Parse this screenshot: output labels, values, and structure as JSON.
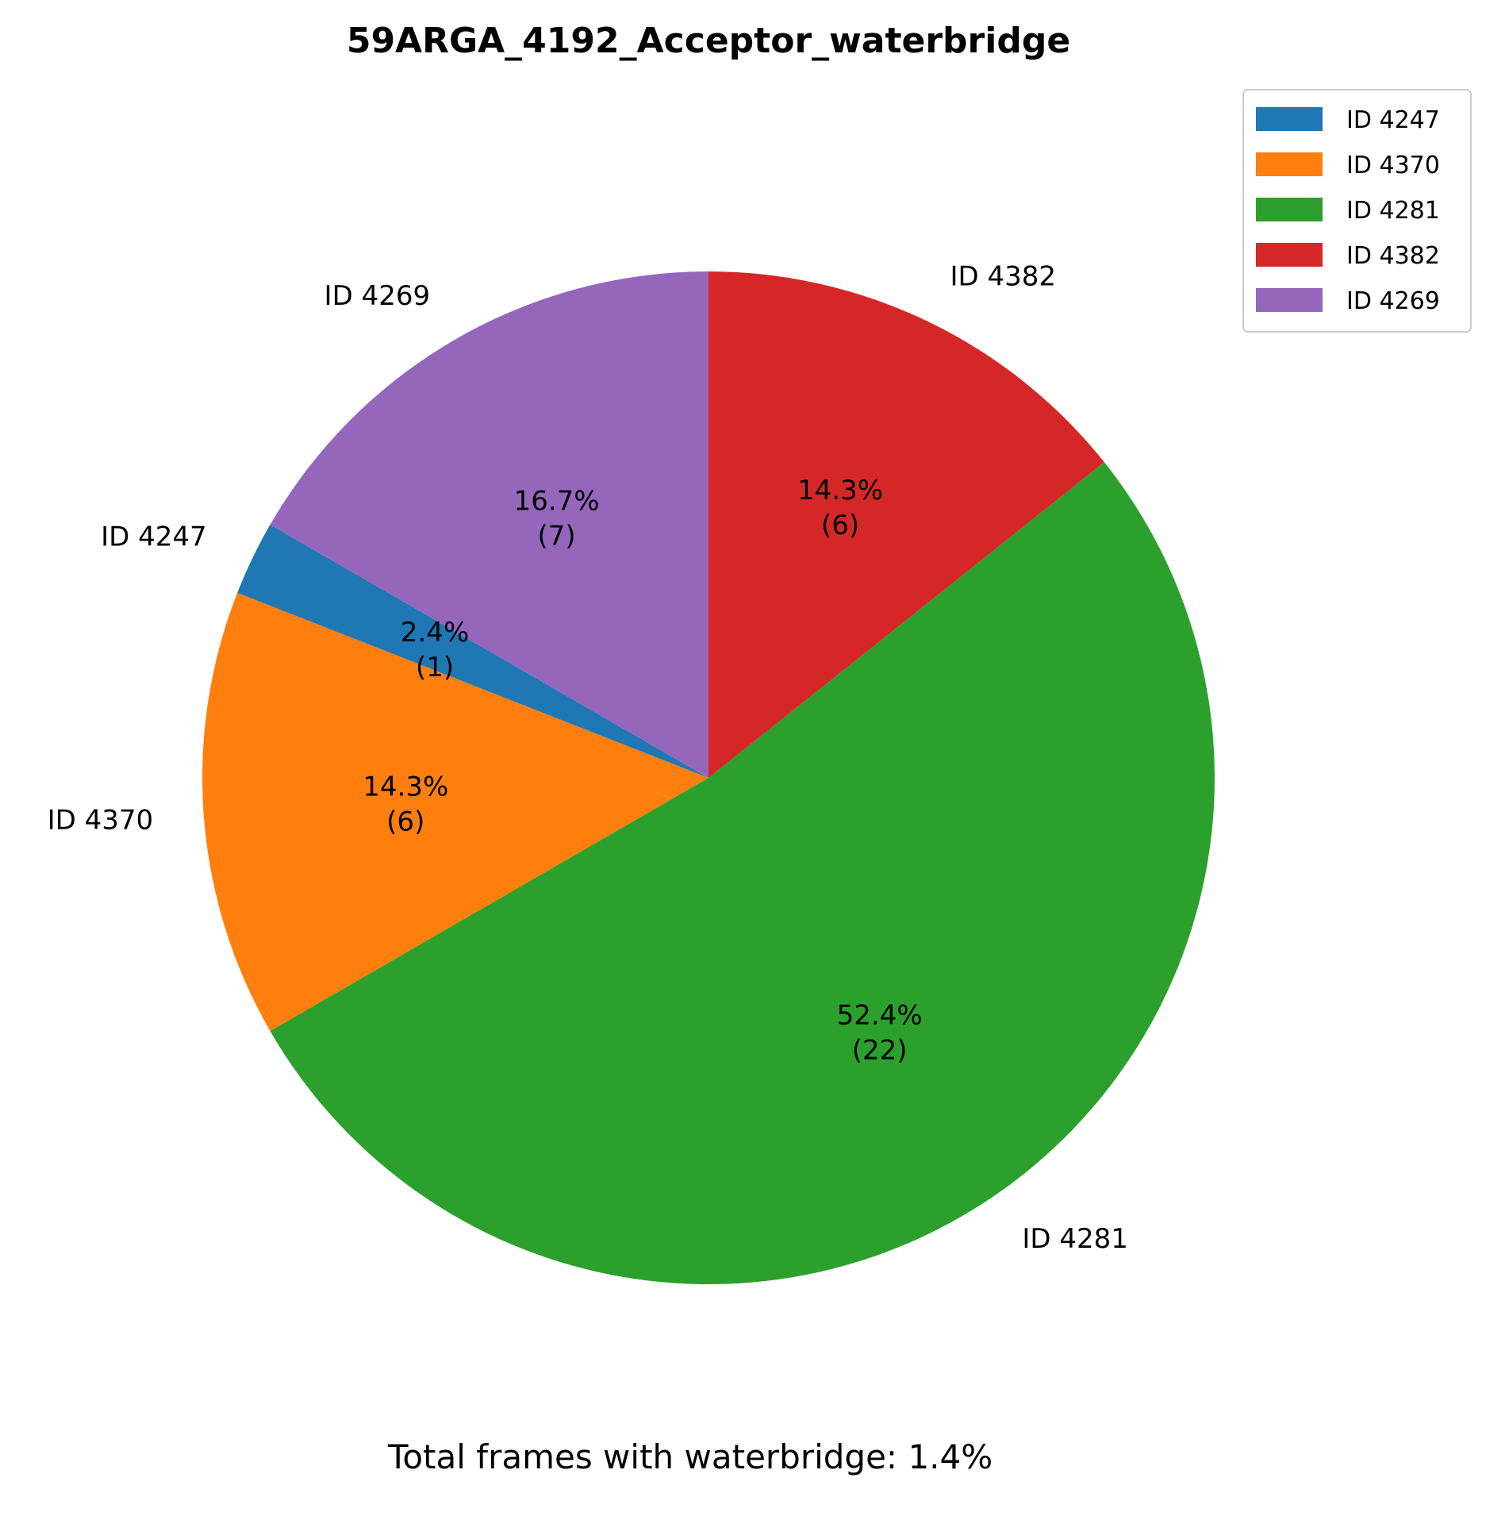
{
  "chart_data": {
    "type": "pie",
    "title": "59ARGA_4192_Acceptor_waterbridge",
    "footer": "Total frames with waterbridge: 1.4%",
    "legend_position": "top-right",
    "start_angle_deg": 150,
    "direction": "counterclockwise",
    "slices": [
      {
        "label": "ID 4247",
        "value": 1,
        "pct_label": "2.4%",
        "count_label": "(1)",
        "color": "#1f77b4"
      },
      {
        "label": "ID 4370",
        "value": 6,
        "pct_label": "14.3%",
        "count_label": "(6)",
        "color": "#ff7f0e"
      },
      {
        "label": "ID 4281",
        "value": 22,
        "pct_label": "52.4%",
        "count_label": "(22)",
        "color": "#2ca02c"
      },
      {
        "label": "ID 4382",
        "value": 6,
        "pct_label": "14.3%",
        "count_label": "(6)",
        "color": "#d62728"
      },
      {
        "label": "ID 4269",
        "value": 7,
        "pct_label": "16.7%",
        "count_label": "(7)",
        "color": "#9467bd"
      }
    ]
  }
}
